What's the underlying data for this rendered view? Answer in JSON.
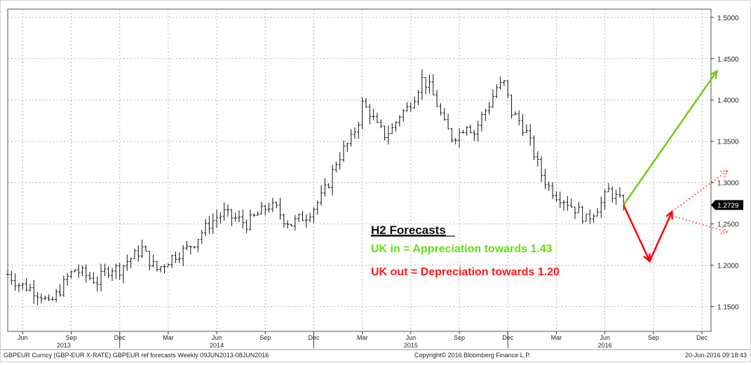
{
  "chart_data": {
    "type": "ohlc",
    "title": "",
    "ylim": [
      1.12,
      1.51
    ],
    "y_ticks": [
      "1.1500",
      "1.2000",
      "1.2500",
      "1.3000",
      "1.3500",
      "1.4000",
      "1.4500",
      "1.5000"
    ],
    "y_tick_values": [
      1.15,
      1.2,
      1.25,
      1.3,
      1.35,
      1.4,
      1.45,
      1.5
    ],
    "x_range_weeks": [
      0,
      186
    ],
    "month_labels": [
      {
        "label": "Jun",
        "week": 4
      },
      {
        "label": "Sep",
        "week": 17
      },
      {
        "label": "Dec",
        "week": 30
      },
      {
        "label": "Mar",
        "week": 43
      },
      {
        "label": "Jun",
        "week": 56
      },
      {
        "label": "Sep",
        "week": 69
      },
      {
        "label": "Dec",
        "week": 82
      },
      {
        "label": "Mar",
        "week": 95
      },
      {
        "label": "Jun",
        "week": 108
      },
      {
        "label": "Sep",
        "week": 121
      },
      {
        "label": "Dec",
        "week": 134
      },
      {
        "label": "Mar",
        "week": 147
      },
      {
        "label": "Jun",
        "week": 160
      },
      {
        "label": "Sep",
        "week": 173
      },
      {
        "label": "Dec",
        "week": 186
      }
    ],
    "year_labels": [
      {
        "label": "2013",
        "week": 15
      },
      {
        "label": "2014",
        "week": 56
      },
      {
        "label": "2015",
        "week": 108
      },
      {
        "label": "2016",
        "week": 160
      }
    ],
    "year_dividers": [
      30,
      82,
      134
    ],
    "price_keypoints": [
      [
        0,
        1.189
      ],
      [
        3,
        1.177
      ],
      [
        6,
        1.172
      ],
      [
        9,
        1.164
      ],
      [
        11,
        1.152
      ],
      [
        12,
        1.158
      ],
      [
        14,
        1.17
      ],
      [
        16,
        1.185
      ],
      [
        18,
        1.195
      ],
      [
        20,
        1.19
      ],
      [
        22,
        1.185
      ],
      [
        24,
        1.18
      ],
      [
        26,
        1.192
      ],
      [
        28,
        1.197
      ],
      [
        30,
        1.195
      ],
      [
        32,
        1.205
      ],
      [
        34,
        1.212
      ],
      [
        36,
        1.22
      ],
      [
        38,
        1.205
      ],
      [
        40,
        1.195
      ],
      [
        42,
        1.202
      ],
      [
        44,
        1.21
      ],
      [
        46,
        1.215
      ],
      [
        48,
        1.22
      ],
      [
        50,
        1.228
      ],
      [
        52,
        1.24
      ],
      [
        54,
        1.25
      ],
      [
        56,
        1.258
      ],
      [
        58,
        1.263
      ],
      [
        60,
        1.258
      ],
      [
        62,
        1.255
      ],
      [
        64,
        1.25
      ],
      [
        66,
        1.258
      ],
      [
        68,
        1.265
      ],
      [
        70,
        1.272
      ],
      [
        72,
        1.268
      ],
      [
        74,
        1.256
      ],
      [
        76,
        1.25
      ],
      [
        78,
        1.256
      ],
      [
        80,
        1.26
      ],
      [
        82,
        1.27
      ],
      [
        84,
        1.282
      ],
      [
        86,
        1.3
      ],
      [
        88,
        1.325
      ],
      [
        90,
        1.34
      ],
      [
        92,
        1.352
      ],
      [
        94,
        1.375
      ],
      [
        95,
        1.395
      ],
      [
        97,
        1.385
      ],
      [
        99,
        1.368
      ],
      [
        101,
        1.358
      ],
      [
        103,
        1.365
      ],
      [
        105,
        1.382
      ],
      [
        107,
        1.39
      ],
      [
        109,
        1.405
      ],
      [
        111,
        1.425
      ],
      [
        113,
        1.415
      ],
      [
        115,
        1.395
      ],
      [
        117,
        1.37
      ],
      [
        119,
        1.355
      ],
      [
        121,
        1.36
      ],
      [
        123,
        1.372
      ],
      [
        125,
        1.36
      ],
      [
        127,
        1.38
      ],
      [
        129,
        1.395
      ],
      [
        131,
        1.415
      ],
      [
        133,
        1.42
      ],
      [
        135,
        1.385
      ],
      [
        137,
        1.375
      ],
      [
        139,
        1.36
      ],
      [
        141,
        1.335
      ],
      [
        143,
        1.31
      ],
      [
        145,
        1.295
      ],
      [
        147,
        1.285
      ],
      [
        149,
        1.28
      ],
      [
        151,
        1.272
      ],
      [
        153,
        1.265
      ],
      [
        155,
        1.255
      ],
      [
        157,
        1.265
      ],
      [
        159,
        1.275
      ],
      [
        161,
        1.29
      ],
      [
        163,
        1.282
      ],
      [
        165,
        1.273
      ]
    ],
    "last_value": 1.2729,
    "last_value_label": "1.2729",
    "forecast_arrows": [
      {
        "name": "uk-in-appreciation",
        "color": "#7ac51b",
        "style": "solid",
        "from": [
          165,
          1.2729
        ],
        "to": [
          190,
          1.435
        ]
      },
      {
        "name": "uk-out-leg-1",
        "color": "#ff0000",
        "style": "solid",
        "from": [
          165,
          1.2729
        ],
        "to": [
          172,
          1.205
        ]
      },
      {
        "name": "uk-out-leg-2",
        "color": "#ff0000",
        "style": "solid",
        "from": [
          172,
          1.205
        ],
        "to": [
          178,
          1.265
        ]
      },
      {
        "name": "uk-out-up",
        "color": "#ff6b6b",
        "style": "dotted",
        "from": [
          178,
          1.265
        ],
        "to": [
          193,
          1.315
        ]
      },
      {
        "name": "uk-out-down",
        "color": "#ff6b6b",
        "style": "dotted",
        "from": [
          178,
          1.26
        ],
        "to": [
          193,
          1.24
        ]
      }
    ]
  },
  "annotation": {
    "heading": "H2 Forecasts",
    "uk_in": "UK in = Appreciation towards 1.43",
    "uk_out": "UK out = Depreciation towards 1.20",
    "uk_in_color": "#66dd11",
    "uk_out_color": "#ff1a1a"
  },
  "footer": {
    "left": "GBPEUR Curncy (GBP-EUR X-RATE) GBPEUR ref forecasts  Weekly 09JUN2013-08JUN2016",
    "center": "Copyright© 2016 Bloomberg Finance L.P.",
    "right": "20-Jun-2016 09:18:43"
  }
}
